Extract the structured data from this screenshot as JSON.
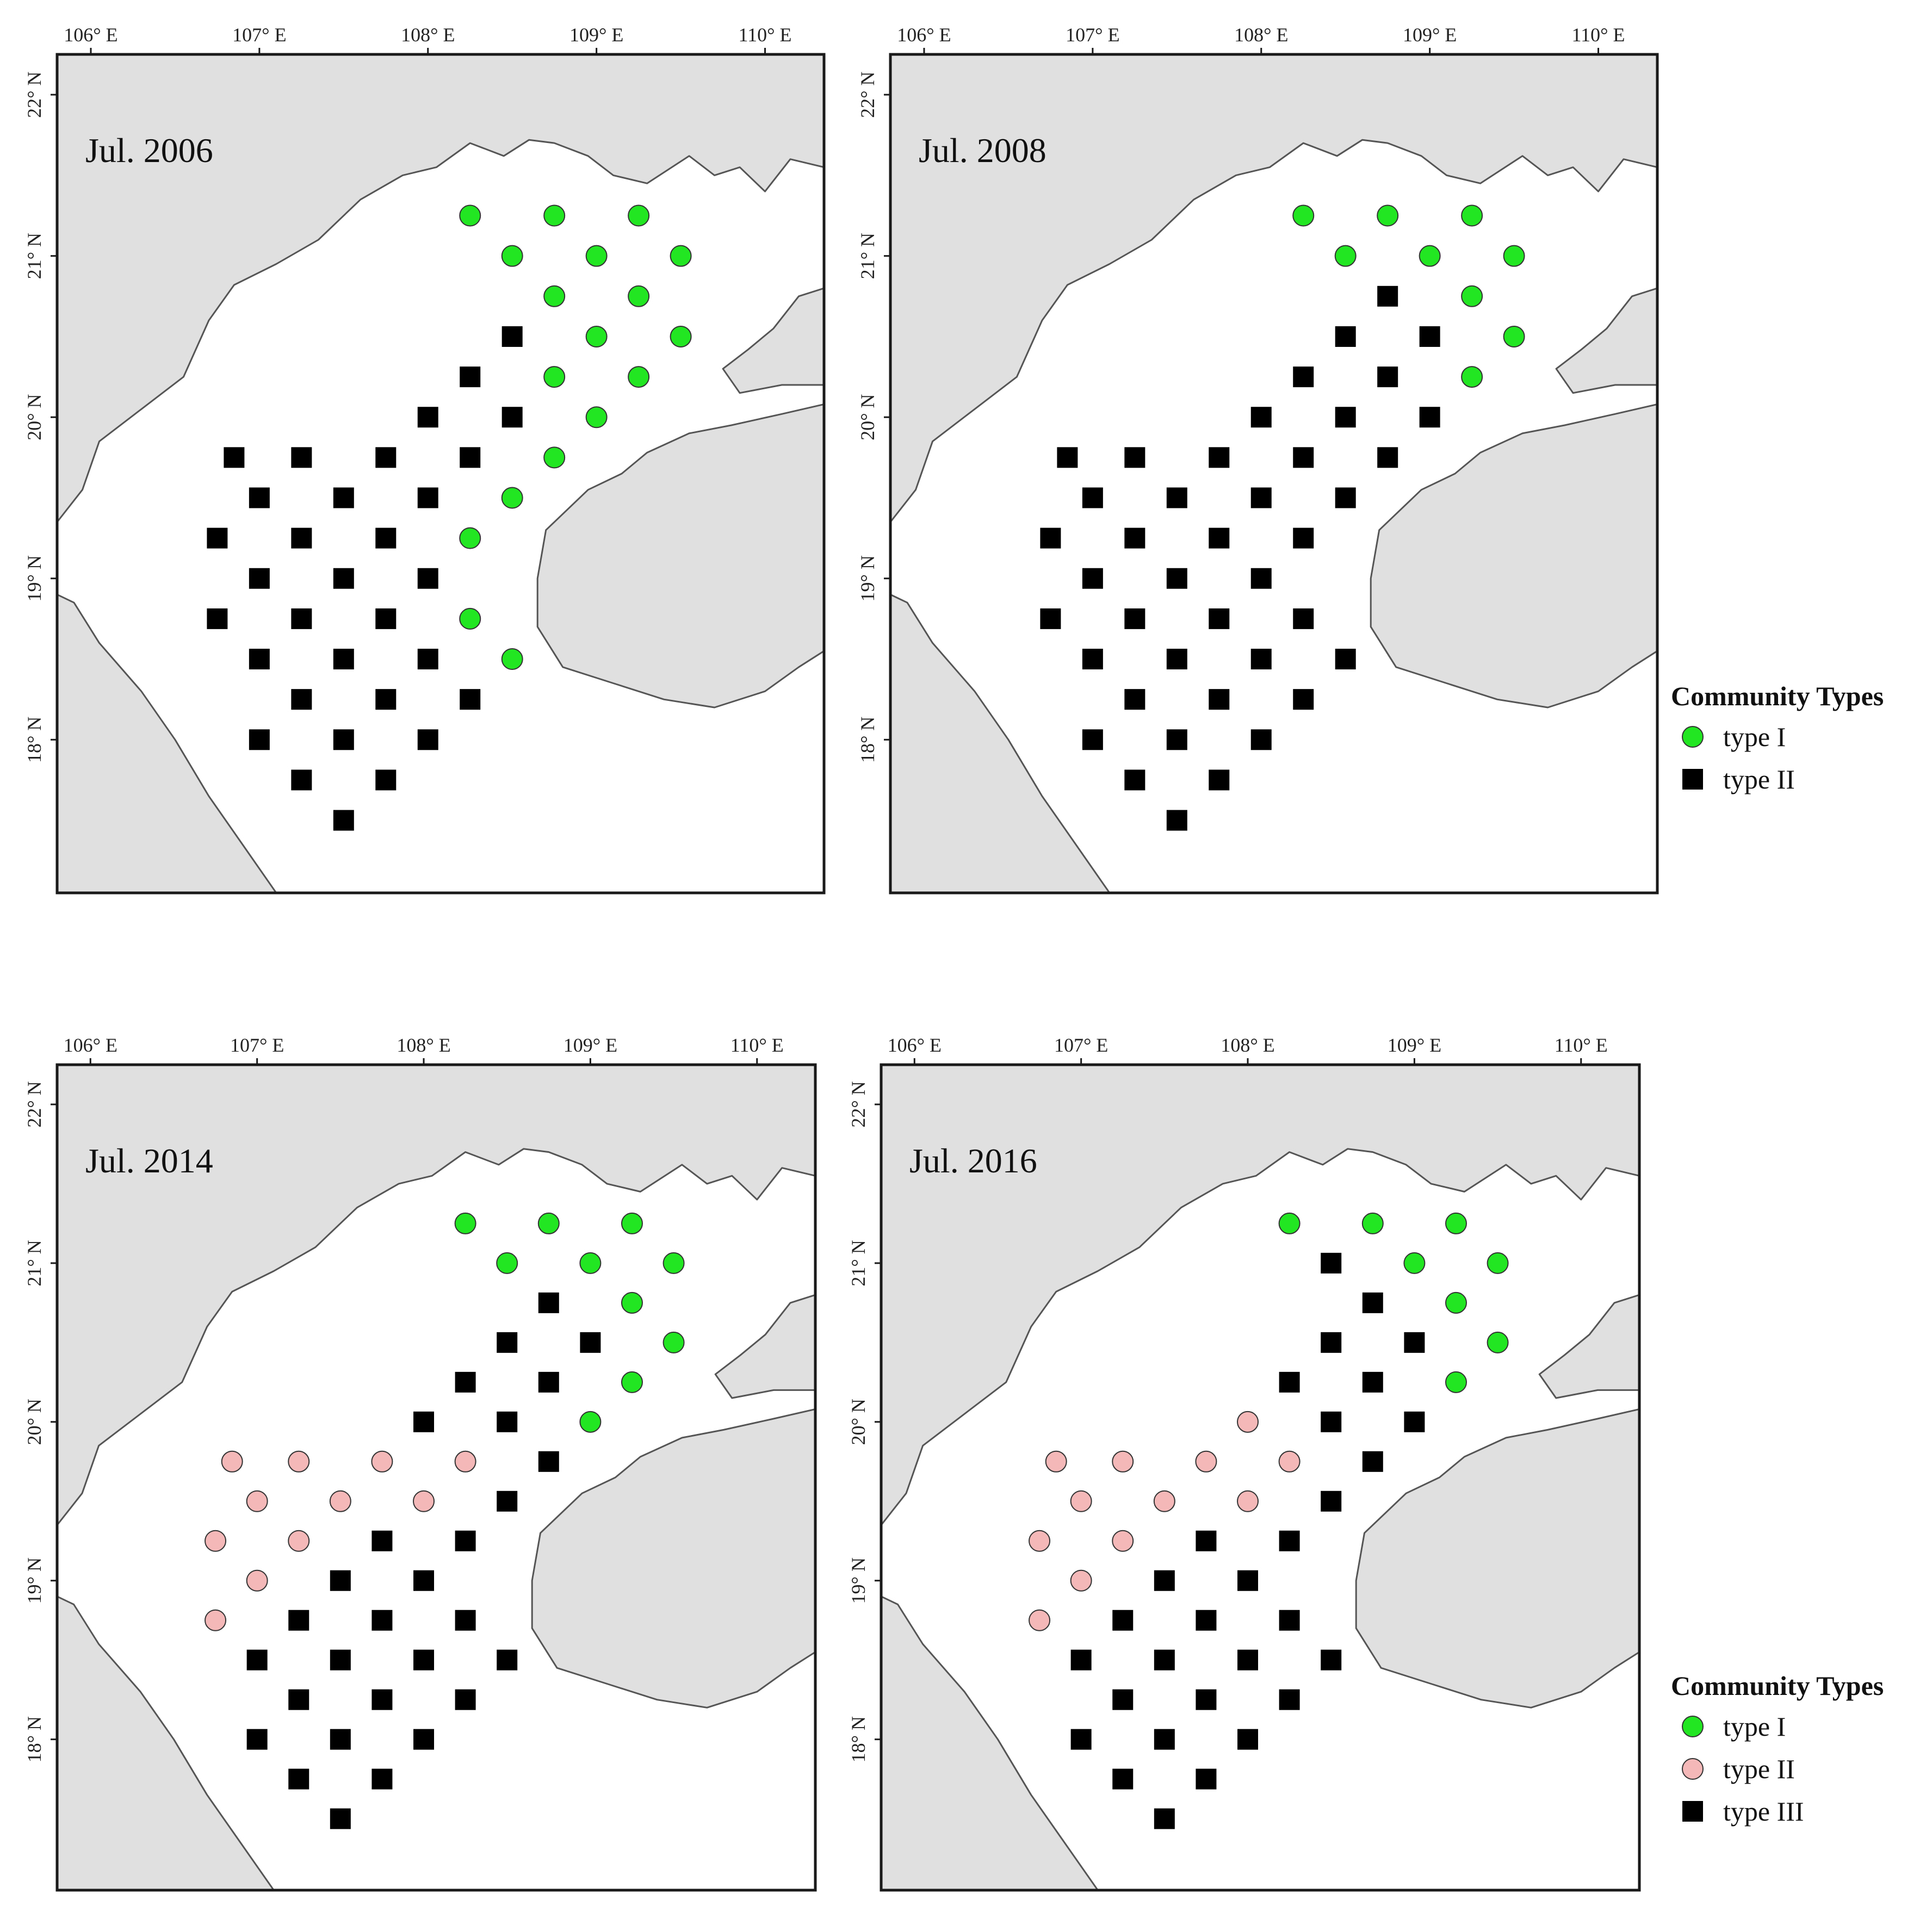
{
  "colors": {
    "type_green": "#22e622",
    "type_pink": "#f5b8b8",
    "type_black": "#000000",
    "land": "#e0e0e0"
  },
  "axes": {
    "lon_ticks": [
      "106° E",
      "107° E",
      "108° E",
      "109° E",
      "110° E"
    ],
    "lat_ticks": [
      "22° N",
      "21° N",
      "20° N",
      "19° N",
      "18° N"
    ]
  },
  "panels": [
    {
      "title": "Jul. 2006",
      "stations": [
        {
          "lat": 21.25,
          "lon": 108.25,
          "type": "I"
        },
        {
          "lat": 21.25,
          "lon": 108.75,
          "type": "I"
        },
        {
          "lat": 21.25,
          "lon": 109.25,
          "type": "I"
        },
        {
          "lat": 21.0,
          "lon": 108.5,
          "type": "I"
        },
        {
          "lat": 21.0,
          "lon": 109.0,
          "type": "I"
        },
        {
          "lat": 21.0,
          "lon": 109.5,
          "type": "I"
        },
        {
          "lat": 20.75,
          "lon": 108.75,
          "type": "I"
        },
        {
          "lat": 20.75,
          "lon": 109.25,
          "type": "I"
        },
        {
          "lat": 20.5,
          "lon": 108.5,
          "type": "II"
        },
        {
          "lat": 20.5,
          "lon": 109.0,
          "type": "I"
        },
        {
          "lat": 20.5,
          "lon": 109.5,
          "type": "I"
        },
        {
          "lat": 20.25,
          "lon": 108.25,
          "type": "II"
        },
        {
          "lat": 20.25,
          "lon": 108.75,
          "type": "I"
        },
        {
          "lat": 20.25,
          "lon": 109.25,
          "type": "I"
        },
        {
          "lat": 20.0,
          "lon": 108.0,
          "type": "II"
        },
        {
          "lat": 20.0,
          "lon": 108.5,
          "type": "II"
        },
        {
          "lat": 20.0,
          "lon": 109.0,
          "type": "I"
        },
        {
          "lat": 19.75,
          "lon": 106.85,
          "type": "II"
        },
        {
          "lat": 19.75,
          "lon": 107.25,
          "type": "II"
        },
        {
          "lat": 19.75,
          "lon": 107.75,
          "type": "II"
        },
        {
          "lat": 19.75,
          "lon": 108.25,
          "type": "II"
        },
        {
          "lat": 19.75,
          "lon": 108.75,
          "type": "I"
        },
        {
          "lat": 19.5,
          "lon": 107.0,
          "type": "II"
        },
        {
          "lat": 19.5,
          "lon": 107.5,
          "type": "II"
        },
        {
          "lat": 19.5,
          "lon": 108.0,
          "type": "II"
        },
        {
          "lat": 19.5,
          "lon": 108.5,
          "type": "I"
        },
        {
          "lat": 19.25,
          "lon": 106.75,
          "type": "II"
        },
        {
          "lat": 19.25,
          "lon": 107.25,
          "type": "II"
        },
        {
          "lat": 19.25,
          "lon": 107.75,
          "type": "II"
        },
        {
          "lat": 19.25,
          "lon": 108.25,
          "type": "I"
        },
        {
          "lat": 19.0,
          "lon": 107.0,
          "type": "II"
        },
        {
          "lat": 19.0,
          "lon": 107.5,
          "type": "II"
        },
        {
          "lat": 19.0,
          "lon": 108.0,
          "type": "II"
        },
        {
          "lat": 18.75,
          "lon": 106.75,
          "type": "II"
        },
        {
          "lat": 18.75,
          "lon": 107.25,
          "type": "II"
        },
        {
          "lat": 18.75,
          "lon": 107.75,
          "type": "II"
        },
        {
          "lat": 18.75,
          "lon": 108.25,
          "type": "I"
        },
        {
          "lat": 18.5,
          "lon": 107.0,
          "type": "II"
        },
        {
          "lat": 18.5,
          "lon": 107.5,
          "type": "II"
        },
        {
          "lat": 18.5,
          "lon": 108.0,
          "type": "II"
        },
        {
          "lat": 18.5,
          "lon": 108.5,
          "type": "I"
        },
        {
          "lat": 18.25,
          "lon": 107.25,
          "type": "II"
        },
        {
          "lat": 18.25,
          "lon": 107.75,
          "type": "II"
        },
        {
          "lat": 18.25,
          "lon": 108.25,
          "type": "II"
        },
        {
          "lat": 18.0,
          "lon": 107.0,
          "type": "II"
        },
        {
          "lat": 18.0,
          "lon": 107.5,
          "type": "II"
        },
        {
          "lat": 18.0,
          "lon": 108.0,
          "type": "II"
        },
        {
          "lat": 17.75,
          "lon": 107.25,
          "type": "II"
        },
        {
          "lat": 17.75,
          "lon": 107.75,
          "type": "II"
        },
        {
          "lat": 17.5,
          "lon": 107.5,
          "type": "II"
        }
      ]
    },
    {
      "title": "Jul. 2008",
      "stations": [
        {
          "lat": 21.25,
          "lon": 108.25,
          "type": "I"
        },
        {
          "lat": 21.25,
          "lon": 108.75,
          "type": "I"
        },
        {
          "lat": 21.25,
          "lon": 109.25,
          "type": "I"
        },
        {
          "lat": 21.0,
          "lon": 108.5,
          "type": "I"
        },
        {
          "lat": 21.0,
          "lon": 109.0,
          "type": "I"
        },
        {
          "lat": 21.0,
          "lon": 109.5,
          "type": "I"
        },
        {
          "lat": 20.75,
          "lon": 108.75,
          "type": "II"
        },
        {
          "lat": 20.75,
          "lon": 109.25,
          "type": "I"
        },
        {
          "lat": 20.5,
          "lon": 108.5,
          "type": "II"
        },
        {
          "lat": 20.5,
          "lon": 109.0,
          "type": "II"
        },
        {
          "lat": 20.5,
          "lon": 109.5,
          "type": "I"
        },
        {
          "lat": 20.25,
          "lon": 108.25,
          "type": "II"
        },
        {
          "lat": 20.25,
          "lon": 108.75,
          "type": "II"
        },
        {
          "lat": 20.25,
          "lon": 109.25,
          "type": "I"
        },
        {
          "lat": 20.0,
          "lon": 108.0,
          "type": "II"
        },
        {
          "lat": 20.0,
          "lon": 108.5,
          "type": "II"
        },
        {
          "lat": 20.0,
          "lon": 109.0,
          "type": "II"
        },
        {
          "lat": 19.75,
          "lon": 106.85,
          "type": "II"
        },
        {
          "lat": 19.75,
          "lon": 107.25,
          "type": "II"
        },
        {
          "lat": 19.75,
          "lon": 107.75,
          "type": "II"
        },
        {
          "lat": 19.75,
          "lon": 108.25,
          "type": "II"
        },
        {
          "lat": 19.75,
          "lon": 108.75,
          "type": "II"
        },
        {
          "lat": 19.5,
          "lon": 107.0,
          "type": "II"
        },
        {
          "lat": 19.5,
          "lon": 107.5,
          "type": "II"
        },
        {
          "lat": 19.5,
          "lon": 108.0,
          "type": "II"
        },
        {
          "lat": 19.5,
          "lon": 108.5,
          "type": "II"
        },
        {
          "lat": 19.25,
          "lon": 106.75,
          "type": "II"
        },
        {
          "lat": 19.25,
          "lon": 107.25,
          "type": "II"
        },
        {
          "lat": 19.25,
          "lon": 107.75,
          "type": "II"
        },
        {
          "lat": 19.25,
          "lon": 108.25,
          "type": "II"
        },
        {
          "lat": 19.0,
          "lon": 107.0,
          "type": "II"
        },
        {
          "lat": 19.0,
          "lon": 107.5,
          "type": "II"
        },
        {
          "lat": 19.0,
          "lon": 108.0,
          "type": "II"
        },
        {
          "lat": 18.75,
          "lon": 106.75,
          "type": "II"
        },
        {
          "lat": 18.75,
          "lon": 107.25,
          "type": "II"
        },
        {
          "lat": 18.75,
          "lon": 107.75,
          "type": "II"
        },
        {
          "lat": 18.75,
          "lon": 108.25,
          "type": "II"
        },
        {
          "lat": 18.5,
          "lon": 107.0,
          "type": "II"
        },
        {
          "lat": 18.5,
          "lon": 107.5,
          "type": "II"
        },
        {
          "lat": 18.5,
          "lon": 108.0,
          "type": "II"
        },
        {
          "lat": 18.5,
          "lon": 108.5,
          "type": "II"
        },
        {
          "lat": 18.25,
          "lon": 107.25,
          "type": "II"
        },
        {
          "lat": 18.25,
          "lon": 107.75,
          "type": "II"
        },
        {
          "lat": 18.25,
          "lon": 108.25,
          "type": "II"
        },
        {
          "lat": 18.0,
          "lon": 107.0,
          "type": "II"
        },
        {
          "lat": 18.0,
          "lon": 107.5,
          "type": "II"
        },
        {
          "lat": 18.0,
          "lon": 108.0,
          "type": "II"
        },
        {
          "lat": 17.75,
          "lon": 107.25,
          "type": "II"
        },
        {
          "lat": 17.75,
          "lon": 107.75,
          "type": "II"
        },
        {
          "lat": 17.5,
          "lon": 107.5,
          "type": "II"
        }
      ]
    },
    {
      "title": "Jul. 2014",
      "stations": [
        {
          "lat": 21.25,
          "lon": 108.25,
          "type": "I"
        },
        {
          "lat": 21.25,
          "lon": 108.75,
          "type": "I"
        },
        {
          "lat": 21.25,
          "lon": 109.25,
          "type": "I"
        },
        {
          "lat": 21.0,
          "lon": 108.5,
          "type": "I"
        },
        {
          "lat": 21.0,
          "lon": 109.0,
          "type": "I"
        },
        {
          "lat": 21.0,
          "lon": 109.5,
          "type": "I"
        },
        {
          "lat": 20.75,
          "lon": 108.75,
          "type": "III"
        },
        {
          "lat": 20.75,
          "lon": 109.25,
          "type": "I"
        },
        {
          "lat": 20.5,
          "lon": 108.5,
          "type": "III"
        },
        {
          "lat": 20.5,
          "lon": 109.0,
          "type": "III"
        },
        {
          "lat": 20.5,
          "lon": 109.5,
          "type": "I"
        },
        {
          "lat": 20.25,
          "lon": 108.25,
          "type": "III"
        },
        {
          "lat": 20.25,
          "lon": 108.75,
          "type": "III"
        },
        {
          "lat": 20.25,
          "lon": 109.25,
          "type": "I"
        },
        {
          "lat": 20.0,
          "lon": 108.0,
          "type": "III"
        },
        {
          "lat": 20.0,
          "lon": 108.5,
          "type": "III"
        },
        {
          "lat": 20.0,
          "lon": 109.0,
          "type": "I"
        },
        {
          "lat": 19.75,
          "lon": 106.85,
          "type": "II"
        },
        {
          "lat": 19.75,
          "lon": 107.25,
          "type": "II"
        },
        {
          "lat": 19.75,
          "lon": 107.75,
          "type": "II"
        },
        {
          "lat": 19.75,
          "lon": 108.25,
          "type": "II"
        },
        {
          "lat": 19.75,
          "lon": 108.75,
          "type": "III"
        },
        {
          "lat": 19.5,
          "lon": 107.0,
          "type": "II"
        },
        {
          "lat": 19.5,
          "lon": 107.5,
          "type": "II"
        },
        {
          "lat": 19.5,
          "lon": 108.0,
          "type": "II"
        },
        {
          "lat": 19.5,
          "lon": 108.5,
          "type": "III"
        },
        {
          "lat": 19.25,
          "lon": 106.75,
          "type": "II"
        },
        {
          "lat": 19.25,
          "lon": 107.25,
          "type": "II"
        },
        {
          "lat": 19.25,
          "lon": 107.75,
          "type": "III"
        },
        {
          "lat": 19.25,
          "lon": 108.25,
          "type": "III"
        },
        {
          "lat": 19.0,
          "lon": 107.0,
          "type": "II"
        },
        {
          "lat": 19.0,
          "lon": 107.5,
          "type": "III"
        },
        {
          "lat": 19.0,
          "lon": 108.0,
          "type": "III"
        },
        {
          "lat": 18.75,
          "lon": 106.75,
          "type": "II"
        },
        {
          "lat": 18.75,
          "lon": 107.25,
          "type": "III"
        },
        {
          "lat": 18.75,
          "lon": 107.75,
          "type": "III"
        },
        {
          "lat": 18.75,
          "lon": 108.25,
          "type": "III"
        },
        {
          "lat": 18.5,
          "lon": 107.0,
          "type": "III"
        },
        {
          "lat": 18.5,
          "lon": 107.5,
          "type": "III"
        },
        {
          "lat": 18.5,
          "lon": 108.0,
          "type": "III"
        },
        {
          "lat": 18.5,
          "lon": 108.5,
          "type": "III"
        },
        {
          "lat": 18.25,
          "lon": 107.25,
          "type": "III"
        },
        {
          "lat": 18.25,
          "lon": 107.75,
          "type": "III"
        },
        {
          "lat": 18.25,
          "lon": 108.25,
          "type": "III"
        },
        {
          "lat": 18.0,
          "lon": 107.0,
          "type": "III"
        },
        {
          "lat": 18.0,
          "lon": 107.5,
          "type": "III"
        },
        {
          "lat": 18.0,
          "lon": 108.0,
          "type": "III"
        },
        {
          "lat": 17.75,
          "lon": 107.25,
          "type": "III"
        },
        {
          "lat": 17.75,
          "lon": 107.75,
          "type": "III"
        },
        {
          "lat": 17.5,
          "lon": 107.5,
          "type": "III"
        }
      ]
    },
    {
      "title": "Jul. 2016",
      "stations": [
        {
          "lat": 21.25,
          "lon": 108.25,
          "type": "I"
        },
        {
          "lat": 21.25,
          "lon": 108.75,
          "type": "I"
        },
        {
          "lat": 21.25,
          "lon": 109.25,
          "type": "I"
        },
        {
          "lat": 21.0,
          "lon": 108.5,
          "type": "III"
        },
        {
          "lat": 21.0,
          "lon": 109.0,
          "type": "I"
        },
        {
          "lat": 21.0,
          "lon": 109.5,
          "type": "I"
        },
        {
          "lat": 20.75,
          "lon": 108.75,
          "type": "III"
        },
        {
          "lat": 20.75,
          "lon": 109.25,
          "type": "I"
        },
        {
          "lat": 20.5,
          "lon": 108.5,
          "type": "III"
        },
        {
          "lat": 20.5,
          "lon": 109.0,
          "type": "III"
        },
        {
          "lat": 20.5,
          "lon": 109.5,
          "type": "I"
        },
        {
          "lat": 20.25,
          "lon": 108.25,
          "type": "III"
        },
        {
          "lat": 20.25,
          "lon": 108.75,
          "type": "III"
        },
        {
          "lat": 20.25,
          "lon": 109.25,
          "type": "I"
        },
        {
          "lat": 20.0,
          "lon": 108.0,
          "type": "II"
        },
        {
          "lat": 20.0,
          "lon": 108.5,
          "type": "III"
        },
        {
          "lat": 20.0,
          "lon": 109.0,
          "type": "III"
        },
        {
          "lat": 19.75,
          "lon": 106.85,
          "type": "II"
        },
        {
          "lat": 19.75,
          "lon": 107.25,
          "type": "II"
        },
        {
          "lat": 19.75,
          "lon": 107.75,
          "type": "II"
        },
        {
          "lat": 19.75,
          "lon": 108.25,
          "type": "II"
        },
        {
          "lat": 19.75,
          "lon": 108.75,
          "type": "III"
        },
        {
          "lat": 19.5,
          "lon": 107.0,
          "type": "II"
        },
        {
          "lat": 19.5,
          "lon": 107.5,
          "type": "II"
        },
        {
          "lat": 19.5,
          "lon": 108.0,
          "type": "II"
        },
        {
          "lat": 19.5,
          "lon": 108.5,
          "type": "III"
        },
        {
          "lat": 19.25,
          "lon": 106.75,
          "type": "II"
        },
        {
          "lat": 19.25,
          "lon": 107.25,
          "type": "II"
        },
        {
          "lat": 19.25,
          "lon": 107.75,
          "type": "III"
        },
        {
          "lat": 19.25,
          "lon": 108.25,
          "type": "III"
        },
        {
          "lat": 19.0,
          "lon": 107.0,
          "type": "II"
        },
        {
          "lat": 19.0,
          "lon": 107.5,
          "type": "III"
        },
        {
          "lat": 19.0,
          "lon": 108.0,
          "type": "III"
        },
        {
          "lat": 18.75,
          "lon": 106.75,
          "type": "II"
        },
        {
          "lat": 18.75,
          "lon": 107.25,
          "type": "III"
        },
        {
          "lat": 18.75,
          "lon": 107.75,
          "type": "III"
        },
        {
          "lat": 18.75,
          "lon": 108.25,
          "type": "III"
        },
        {
          "lat": 18.5,
          "lon": 107.0,
          "type": "III"
        },
        {
          "lat": 18.5,
          "lon": 107.5,
          "type": "III"
        },
        {
          "lat": 18.5,
          "lon": 108.0,
          "type": "III"
        },
        {
          "lat": 18.5,
          "lon": 108.5,
          "type": "III"
        },
        {
          "lat": 18.25,
          "lon": 107.25,
          "type": "III"
        },
        {
          "lat": 18.25,
          "lon": 107.75,
          "type": "III"
        },
        {
          "lat": 18.25,
          "lon": 108.25,
          "type": "III"
        },
        {
          "lat": 18.0,
          "lon": 107.0,
          "type": "III"
        },
        {
          "lat": 18.0,
          "lon": 107.5,
          "type": "III"
        },
        {
          "lat": 18.0,
          "lon": 108.0,
          "type": "III"
        },
        {
          "lat": 17.75,
          "lon": 107.25,
          "type": "III"
        },
        {
          "lat": 17.75,
          "lon": 107.75,
          "type": "III"
        },
        {
          "lat": 17.5,
          "lon": 107.5,
          "type": "III"
        }
      ]
    }
  ],
  "legends": [
    {
      "title": "Community Types",
      "items": [
        {
          "label": "type I",
          "marker": "circle",
          "color": "#22e622"
        },
        {
          "label": "type II",
          "marker": "square",
          "color": "#000000"
        }
      ]
    },
    {
      "title": "Community Types",
      "items": [
        {
          "label": "type I",
          "marker": "circle",
          "color": "#22e622"
        },
        {
          "label": "type II",
          "marker": "circle",
          "color": "#f5b8b8"
        },
        {
          "label": "type III",
          "marker": "square",
          "color": "#000000"
        }
      ]
    }
  ]
}
